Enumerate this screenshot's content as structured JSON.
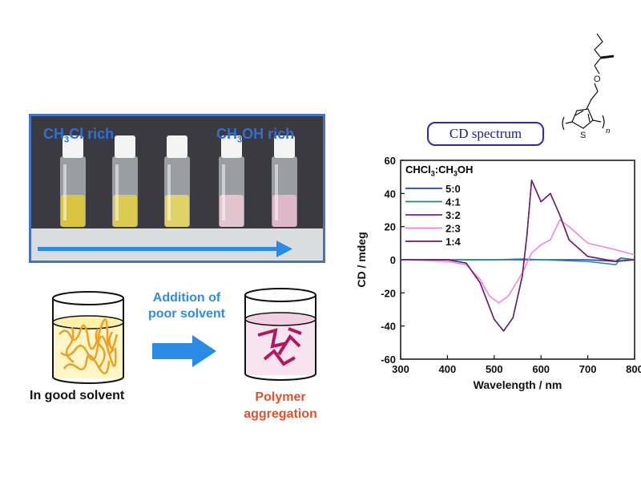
{
  "photo": {
    "left_label_pre": "CH",
    "left_label_sub": "3",
    "left_label_post": "Cl rich",
    "right_label_pre": "CH",
    "right_label_sub": "3",
    "right_label_post": "OH rich",
    "vial_liquid_colors": [
      "#d8c640",
      "#dccb52",
      "#e1d268",
      "#e2c4cf",
      "#deb8c8"
    ]
  },
  "scheme": {
    "arrow_text_line1": "Addition of",
    "arrow_text_line2": "poor solvent",
    "left_caption": "In good solvent",
    "right_caption_line1": "Polymer",
    "right_caption_line2": "aggregation"
  },
  "molecule": {
    "oxygen": "O",
    "sulfur": "S",
    "subscript_n": "n"
  },
  "cd_label": "CD spectrum",
  "legend": {
    "title_parts": [
      "CHCl",
      "3",
      ":CH",
      "3",
      "OH"
    ]
  },
  "chart_data": {
    "type": "line",
    "xlabel": "Wavelength / nm",
    "ylabel": "CD / mdeg",
    "xlim": [
      300,
      800
    ],
    "ylim": [
      -60,
      60
    ],
    "xticks": [
      300,
      400,
      500,
      600,
      700,
      800
    ],
    "yticks": [
      -60,
      -40,
      -20,
      0,
      20,
      40,
      60
    ],
    "legend_position": "top-left",
    "series": [
      {
        "name": "5:0",
        "color": "#1f3fcf",
        "x": [
          300,
          400,
          500,
          600,
          700,
          760,
          770,
          800
        ],
        "y": [
          0,
          0,
          0,
          0,
          0,
          -1,
          1,
          0
        ]
      },
      {
        "name": "4:1",
        "color": "#1f8a7a",
        "x": [
          300,
          400,
          500,
          560,
          600,
          700,
          760,
          770,
          800
        ],
        "y": [
          0,
          0,
          0,
          0.5,
          0,
          -1,
          -3,
          1,
          0
        ]
      },
      {
        "name": "3:2",
        "color": "#7a1fa0",
        "x": [
          300,
          400,
          440,
          470,
          500,
          520,
          540,
          560,
          570,
          580,
          600,
          620,
          640,
          660,
          700,
          760,
          800
        ],
        "y": [
          0,
          0,
          -2,
          -14,
          -36,
          -43,
          -35,
          -10,
          15,
          48,
          35,
          40,
          27,
          12,
          2,
          -1,
          0
        ]
      },
      {
        "name": "2:3",
        "color": "#f07fe4",
        "x": [
          300,
          400,
          440,
          470,
          490,
          510,
          530,
          560,
          580,
          600,
          620,
          640,
          660,
          700,
          760,
          800
        ],
        "y": [
          0,
          -1,
          -3,
          -12,
          -22,
          -26,
          -22,
          -8,
          4,
          9,
          12,
          24,
          20,
          10,
          6,
          3
        ]
      },
      {
        "name": "1:4",
        "color": "#6a1a6a",
        "x": [
          300,
          400,
          440,
          470,
          500,
          520,
          540,
          560,
          570,
          580,
          600,
          620,
          640,
          660,
          700,
          760,
          800
        ],
        "y": [
          0,
          0,
          -2,
          -14,
          -36,
          -43,
          -35,
          -10,
          15,
          48,
          35,
          40,
          27,
          12,
          2,
          -1,
          0
        ]
      }
    ]
  }
}
